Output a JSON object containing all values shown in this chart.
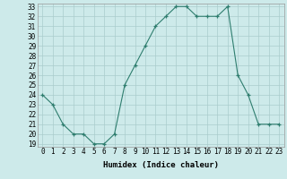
{
  "x": [
    0,
    1,
    2,
    3,
    4,
    5,
    6,
    7,
    8,
    9,
    10,
    11,
    12,
    13,
    14,
    15,
    16,
    17,
    18,
    19,
    20,
    21,
    22,
    23
  ],
  "y": [
    24,
    23,
    21,
    20,
    20,
    19,
    19,
    20,
    25,
    27,
    29,
    31,
    32,
    33,
    33,
    32,
    32,
    32,
    33,
    26,
    24,
    21,
    21,
    21
  ],
  "xlabel": "Humidex (Indice chaleur)",
  "ylim": [
    19,
    33
  ],
  "xlim": [
    -0.5,
    23.5
  ],
  "yticks": [
    19,
    20,
    21,
    22,
    23,
    24,
    25,
    26,
    27,
    28,
    29,
    30,
    31,
    32,
    33
  ],
  "xticks": [
    0,
    1,
    2,
    3,
    4,
    5,
    6,
    7,
    8,
    9,
    10,
    11,
    12,
    13,
    14,
    15,
    16,
    17,
    18,
    19,
    20,
    21,
    22,
    23
  ],
  "line_color": "#2e7d6e",
  "bg_color": "#cdeaea",
  "grid_color": "#aacccc",
  "xlabel_fontsize": 6.5,
  "tick_fontsize": 5.5
}
